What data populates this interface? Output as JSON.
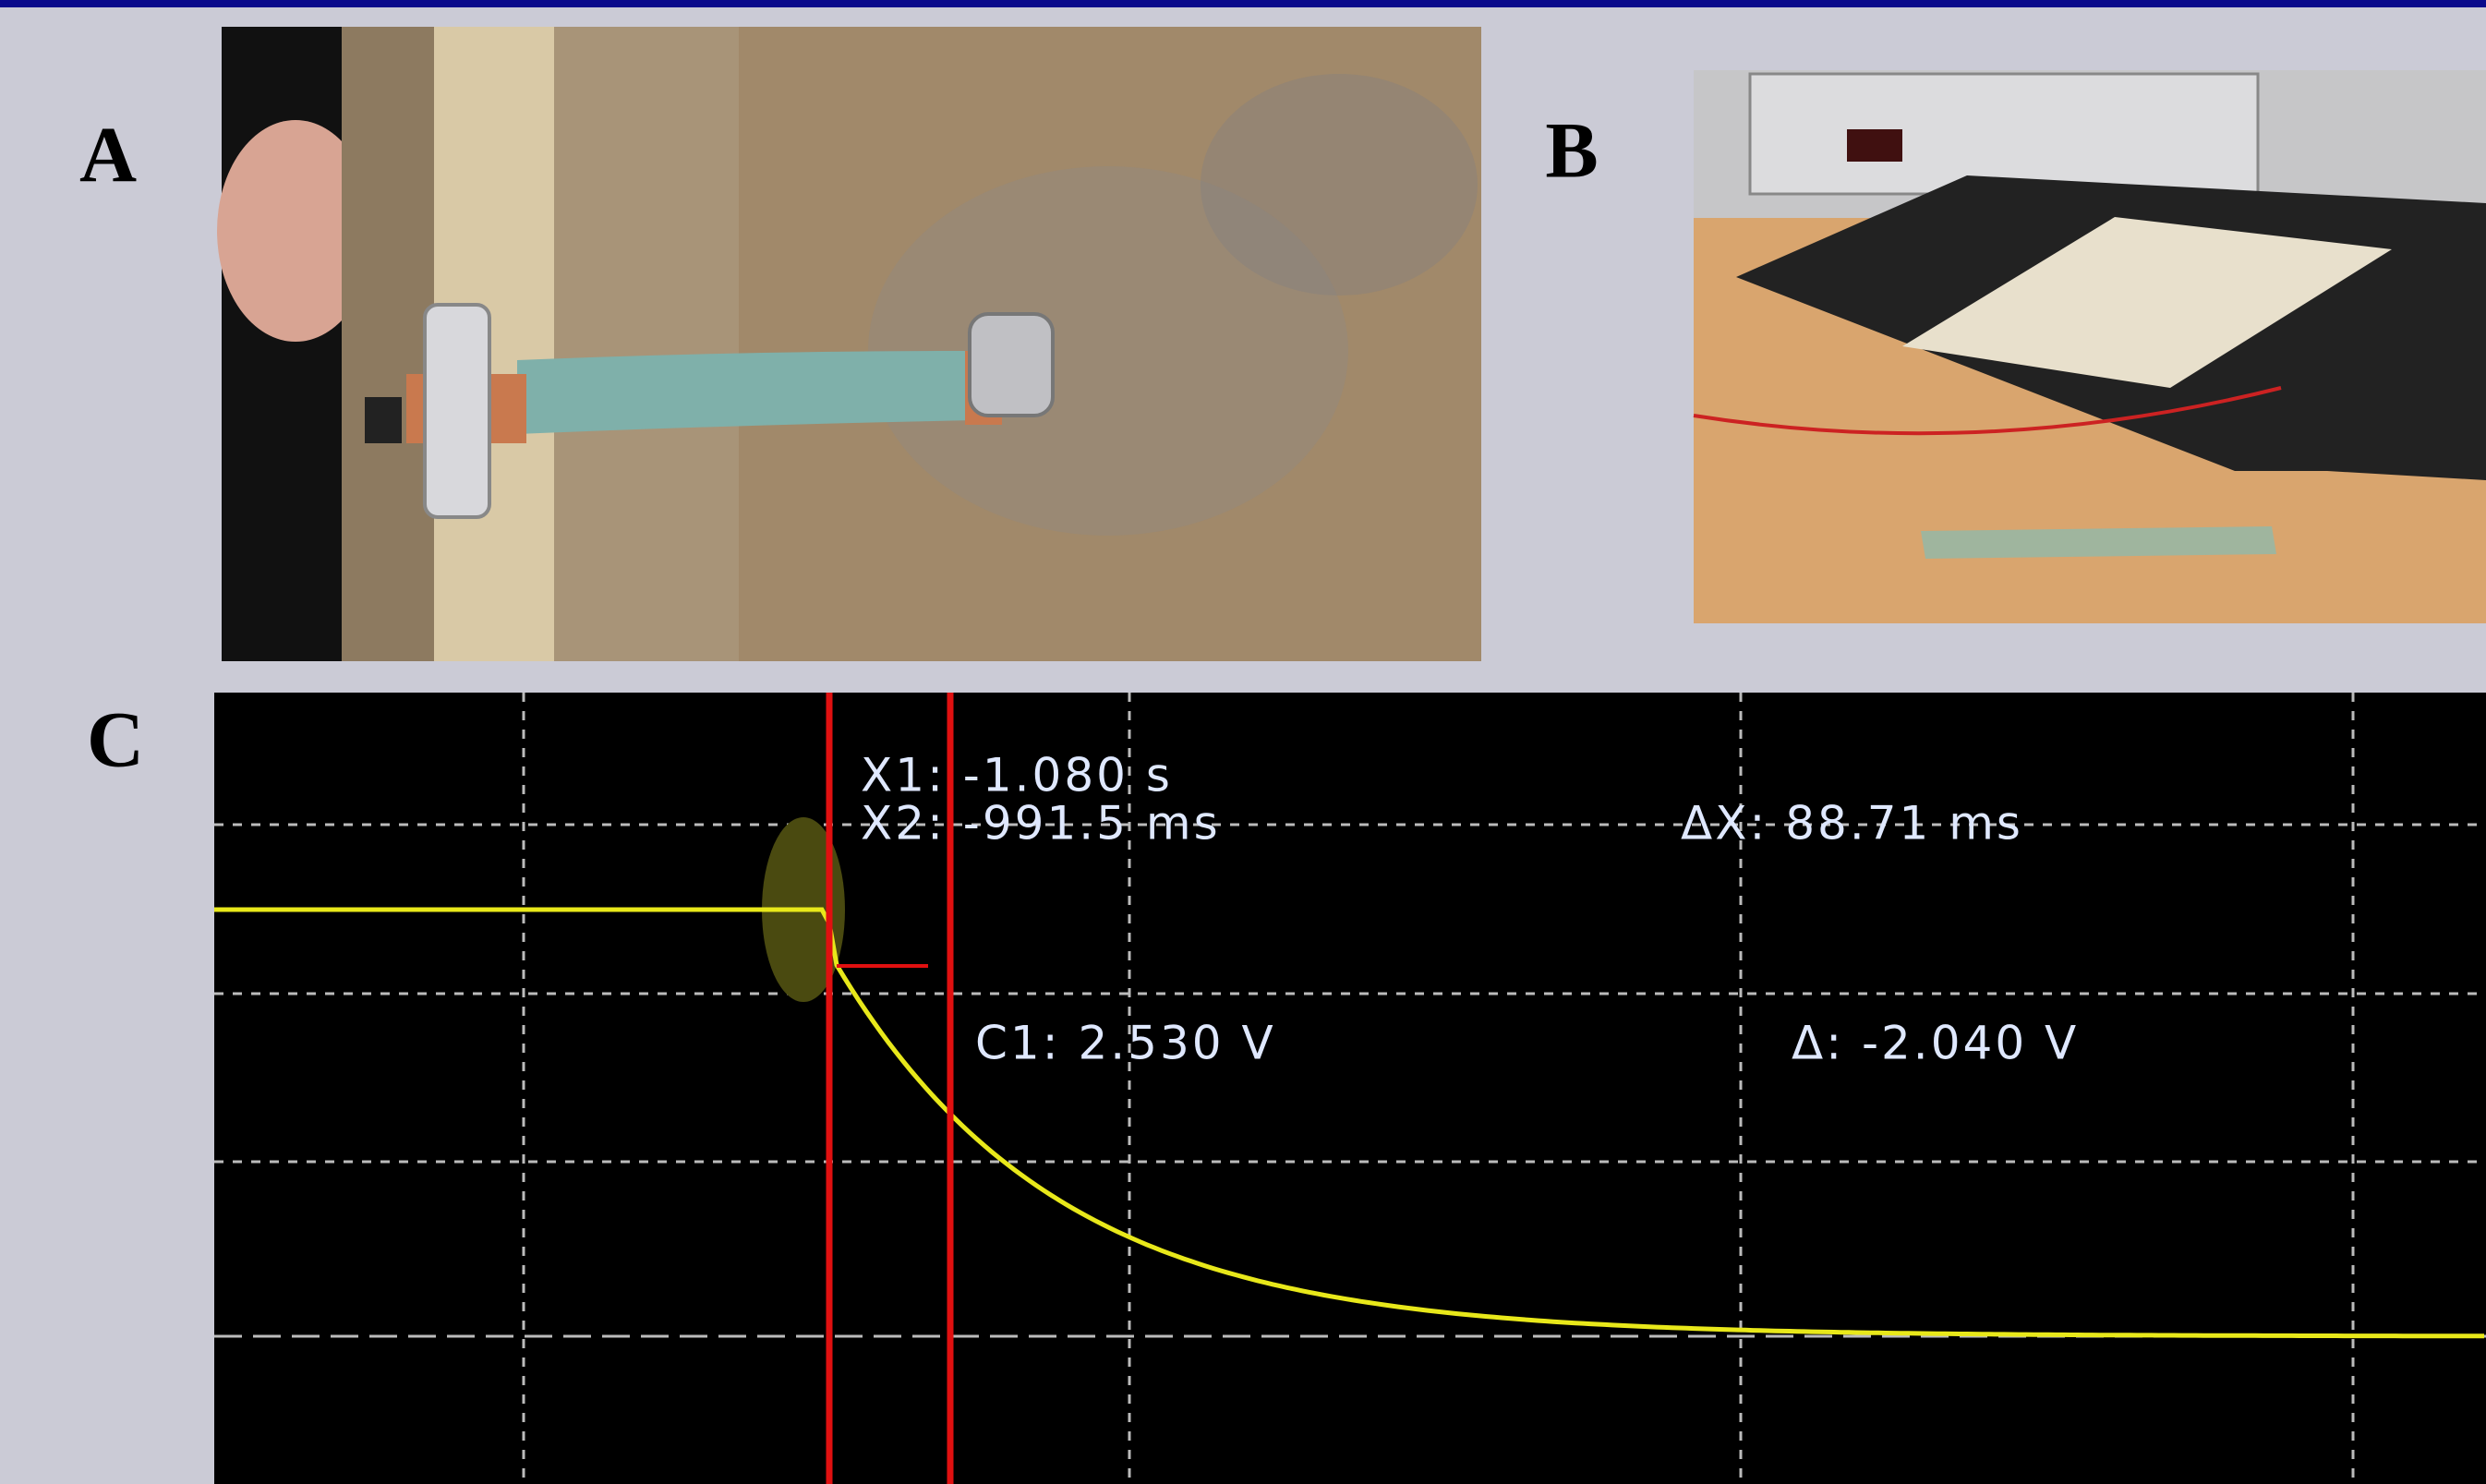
{
  "panels": [
    {
      "label": "A"
    },
    {
      "label": "B"
    },
    {
      "label": "C"
    }
  ],
  "scope": {
    "x1": "X1: -1.080 s",
    "x2": "X2: -991.5 ms",
    "dx": "ΔX: 88.71 ms",
    "c1": "C1: 2.530 V",
    "dv": "Δ: -2.040 V"
  }
}
